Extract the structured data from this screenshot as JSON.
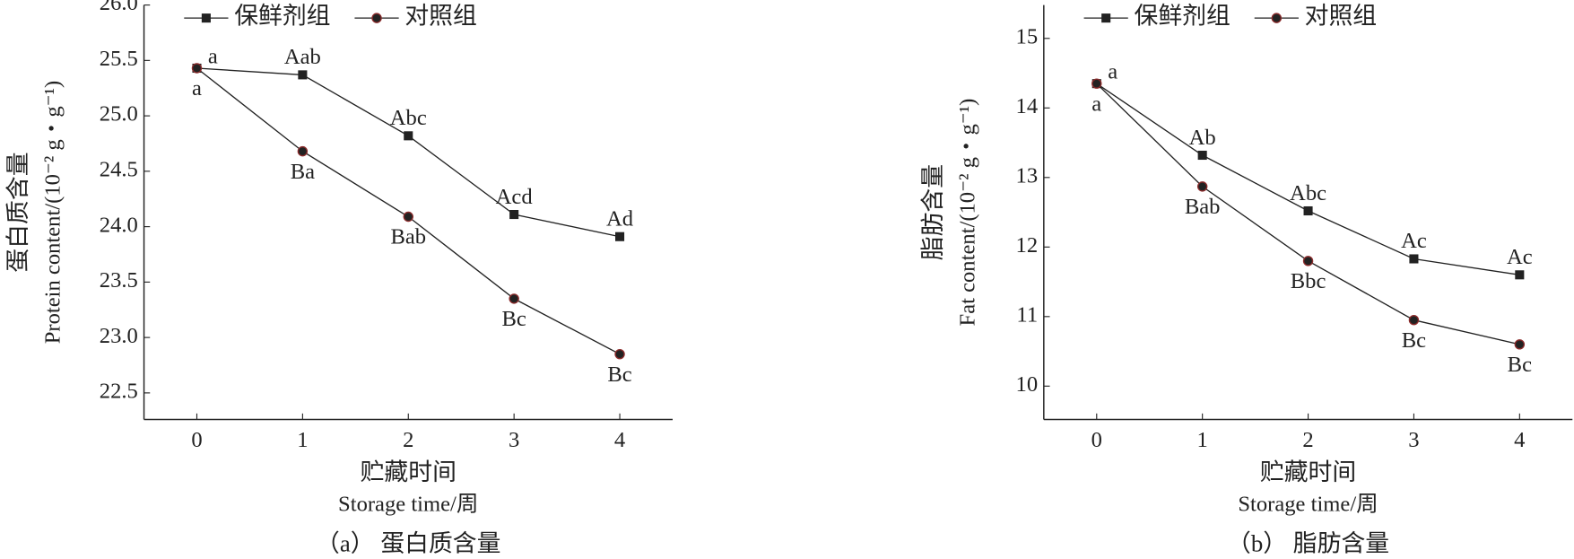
{
  "chart_data": [
    {
      "type": "line",
      "caption": "（a） 蛋白质含量",
      "ylabel": "蛋白质含量",
      "ylabel_en": "Protein content/(10⁻² g・g⁻¹)",
      "xlabel": "贮藏时间",
      "xlabel_en": "Storage time/周",
      "x": [
        0,
        1,
        2,
        3,
        4
      ],
      "xlim": [
        -0.5,
        4.5
      ],
      "xticks": [
        0,
        1,
        2,
        3,
        4
      ],
      "ylim": [
        22.26,
        26.0
      ],
      "yticks": [
        {
          "value": 22.5,
          "label": "22.5"
        },
        {
          "value": 23,
          "label": "23.0"
        },
        {
          "value": 23.5,
          "label": "23.5"
        },
        {
          "value": 24,
          "label": "24.0"
        },
        {
          "value": 24.5,
          "label": "24.5"
        },
        {
          "value": 25,
          "label": "25.0"
        },
        {
          "value": 25.5,
          "label": "25.5"
        },
        {
          "value": 26,
          "label": "26.0"
        }
      ],
      "series": [
        {
          "name": "保鲜剂组",
          "color": "#222222",
          "marker": "square",
          "values": [
            25.43,
            25.37,
            24.82,
            24.11,
            23.91
          ],
          "labels": [
            "a",
            "Aab",
            "Abc",
            "Acd",
            "Ad"
          ]
        },
        {
          "name": "对照组",
          "color": "#222222",
          "marker": "circle",
          "values": [
            25.43,
            24.68,
            24.09,
            23.35,
            22.85
          ],
          "labels": [
            "a",
            "Ba",
            "Bab",
            "Bc",
            "Bc"
          ]
        }
      ]
    },
    {
      "type": "line",
      "caption": "（b） 脂肪含量",
      "ylabel": "脂肪含量",
      "ylabel_en": "Fat content/(10⁻² g・g⁻¹)",
      "xlabel": "贮藏时间",
      "xlabel_en": "Storage time/周",
      "x": [
        0,
        1,
        2,
        3,
        4
      ],
      "xlim": [
        -0.5,
        4.5
      ],
      "xticks": [
        0,
        1,
        2,
        3,
        4
      ],
      "ylim": [
        9.52,
        15.48
      ],
      "yticks": [
        10,
        11,
        12,
        13,
        14,
        15
      ],
      "series": [
        {
          "name": "保鲜剂组",
          "color": "#222222",
          "marker": "square",
          "values": [
            14.35,
            13.32,
            12.52,
            11.83,
            11.6
          ],
          "labels": [
            "a",
            "Ab",
            "Abc",
            "Ac",
            "Ac"
          ]
        },
        {
          "name": "对照组",
          "color": "#222222",
          "marker": "circle",
          "values": [
            14.35,
            12.87,
            11.8,
            10.95,
            10.6
          ],
          "labels": [
            "a",
            "Bab",
            "Bbc",
            "Bc",
            "Bc"
          ]
        }
      ]
    }
  ]
}
